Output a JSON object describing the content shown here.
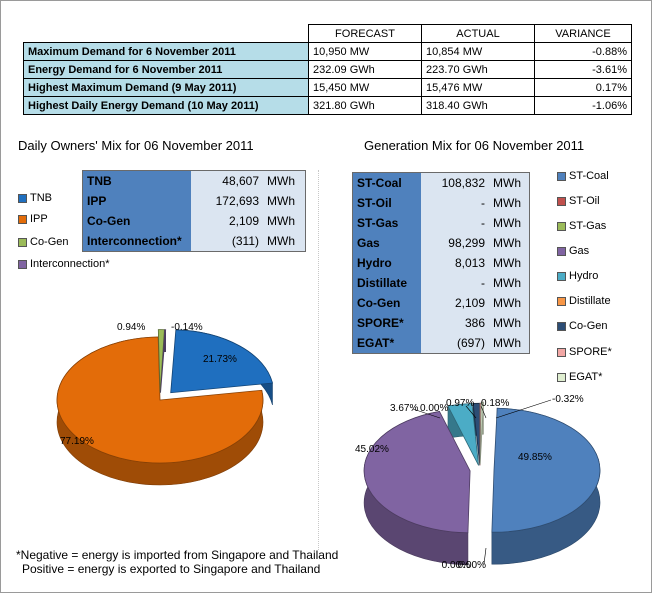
{
  "summary": {
    "headers": [
      "FORECAST",
      "ACTUAL",
      "VARIANCE"
    ],
    "rows": [
      {
        "label": "Maximum Demand for 6 November 2011",
        "forecast": "10,950 MW",
        "actual": "10,854 MW",
        "variance": "-0.88%"
      },
      {
        "label": "Energy Demand for 6 November 2011",
        "forecast": "232.09 GWh",
        "actual": "223.70 GWh",
        "variance": "-3.61%"
      },
      {
        "label": "Highest Maximum Demand (9 May 2011)",
        "forecast": "15,450 MW",
        "actual": "15,476 MW",
        "variance": "0.17%"
      },
      {
        "label": "Highest Daily Energy Demand (10 May 2011)",
        "forecast": "321.80 GWh",
        "actual": "318.40 GWh",
        "variance": "-1.06%"
      }
    ]
  },
  "owners": {
    "title": "Daily Owners' Mix for 06 November 2011",
    "rows": [
      {
        "label": "TNB",
        "value": "48,607",
        "unit": "MWh"
      },
      {
        "label": "IPP",
        "value": "172,693",
        "unit": "MWh"
      },
      {
        "label": "Co-Gen",
        "value": "2,109",
        "unit": "MWh"
      },
      {
        "label": "Interconnection*",
        "value": "(311)",
        "unit": "MWh"
      }
    ],
    "legend": [
      {
        "label": "TNB",
        "color": "#1f6fbf"
      },
      {
        "label": "IPP",
        "color": "#e36c09"
      },
      {
        "label": "Co-Gen",
        "color": "#9bbb59"
      },
      {
        "label": "Interconnection*",
        "color": "#8064a2"
      }
    ]
  },
  "generation": {
    "title": "Generation Mix for 06 November 2011",
    "rows": [
      {
        "label": "ST-Coal",
        "value": "108,832",
        "unit": "MWh"
      },
      {
        "label": "ST-Oil",
        "value": "-",
        "unit": "MWh"
      },
      {
        "label": "ST-Gas",
        "value": "-",
        "unit": "MWh"
      },
      {
        "label": "Gas",
        "value": "98,299",
        "unit": "MWh"
      },
      {
        "label": "Hydro",
        "value": "8,013",
        "unit": "MWh"
      },
      {
        "label": "Distillate",
        "value": "-",
        "unit": "MWh"
      },
      {
        "label": "Co-Gen",
        "value": "2,109",
        "unit": "MWh"
      },
      {
        "label": "SPORE*",
        "value": "386",
        "unit": "MWh"
      },
      {
        "label": "EGAT*",
        "value": "(697)",
        "unit": "MWh"
      }
    ],
    "legend": [
      {
        "label": "ST-Coal",
        "color": "#4f81bd"
      },
      {
        "label": "ST-Oil",
        "color": "#c0504d"
      },
      {
        "label": "ST-Gas",
        "color": "#9bbb59"
      },
      {
        "label": "Gas",
        "color": "#8064a2"
      },
      {
        "label": "Hydro",
        "color": "#4bacc6"
      },
      {
        "label": "Distillate",
        "color": "#f79646"
      },
      {
        "label": "Co-Gen",
        "color": "#2c4d75"
      },
      {
        "label": "SPORE*",
        "color": "#f2a7a5"
      },
      {
        "label": "EGAT*",
        "color": "#dfeed0"
      }
    ]
  },
  "chart_data": [
    {
      "type": "pie",
      "categories": [
        "TNB",
        "IPP",
        "Co-Gen",
        "Interconnection*"
      ],
      "values": [
        21.73,
        77.19,
        0.94,
        -0.14
      ],
      "labels": [
        "21.73%",
        "77.19%",
        "0.94%",
        "-0.14%"
      ],
      "colors": [
        "#1f6fbf",
        "#e36c09",
        "#9bbb59",
        "#8064a2"
      ],
      "legend_position": "left"
    },
    {
      "type": "pie",
      "categories": [
        "ST-Coal",
        "ST-Oil",
        "ST-Gas",
        "Gas",
        "Hydro",
        "Distillate",
        "Co-Gen",
        "SPORE*",
        "EGAT*"
      ],
      "values": [
        49.85,
        0.0,
        0.0,
        45.02,
        3.67,
        0.0,
        0.97,
        0.18,
        -0.32
      ],
      "labels": [
        "49.85%",
        "0.00%",
        "0.00%",
        "45.02%",
        "3.67%",
        "0.00%",
        "0.97%",
        "0.18%",
        "-0.32%"
      ],
      "colors": [
        "#4f81bd",
        "#c0504d",
        "#9bbb59",
        "#8064a2",
        "#4bacc6",
        "#f79646",
        "#2c4d75",
        "#f2a7a5",
        "#dfeed0"
      ],
      "legend_position": "right"
    }
  ],
  "footnote": {
    "line1": "*Negative = energy is imported from Singapore and Thailand",
    "line2": "Positive = energy is exported to Singapore and Thailand"
  }
}
